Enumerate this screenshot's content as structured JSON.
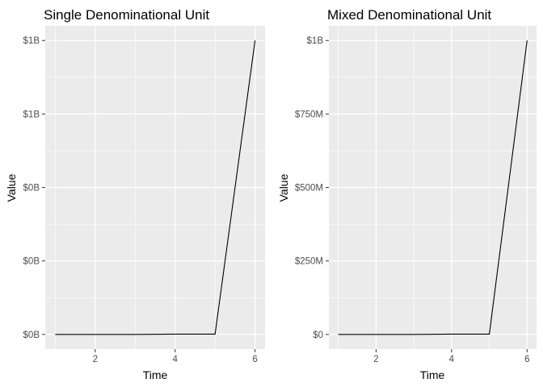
{
  "chart_data": [
    {
      "type": "line",
      "title": "Single Denominational Unit",
      "xlabel": "Time",
      "ylabel": "Value",
      "x": [
        1,
        2,
        3,
        4,
        5,
        6
      ],
      "series": [
        {
          "values": [
            0,
            0,
            0,
            1000000,
            1000000,
            1000000000
          ]
        }
      ],
      "xlim": [
        0.75,
        6.25
      ],
      "ylim": [
        -50000000,
        1050000000
      ],
      "x_ticks": [
        2,
        4,
        6
      ],
      "y_ticks": [
        0,
        250000000,
        500000000,
        750000000,
        1000000000
      ],
      "y_tick_labels": [
        "$0B",
        "$0B",
        "$0B",
        "$1B",
        "$1B"
      ],
      "grid": true,
      "panel_bg": "#ebebeb",
      "grid_color": "#ffffff",
      "line_color": "#000000"
    },
    {
      "type": "line",
      "title": "Mixed Denominational Unit",
      "xlabel": "Time",
      "ylabel": "Value",
      "x": [
        1,
        2,
        3,
        4,
        5,
        6
      ],
      "series": [
        {
          "values": [
            0,
            0,
            0,
            1000000,
            1000000,
            1000000000
          ]
        }
      ],
      "xlim": [
        0.75,
        6.25
      ],
      "ylim": [
        -50000000,
        1050000000
      ],
      "x_ticks": [
        2,
        4,
        6
      ],
      "y_ticks": [
        0,
        250000000,
        500000000,
        750000000,
        1000000000
      ],
      "y_tick_labels": [
        "$0",
        "$250M",
        "$500M",
        "$750M",
        "$1B"
      ],
      "grid": true,
      "panel_bg": "#ebebeb",
      "grid_color": "#ffffff",
      "line_color": "#000000"
    }
  ]
}
